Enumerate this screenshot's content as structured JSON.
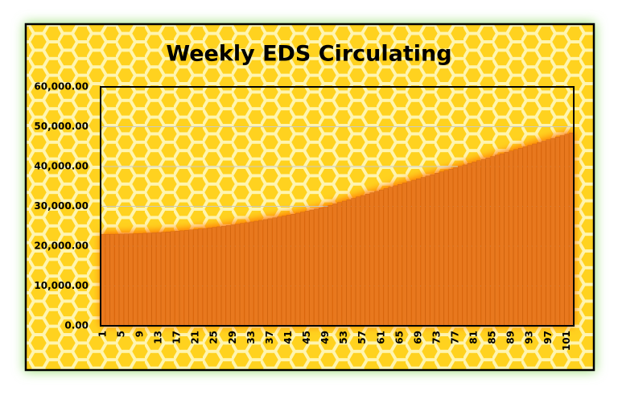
{
  "chart_data": {
    "type": "bar",
    "title": "Weekly EDS Circulating",
    "categories": [
      1,
      null,
      null,
      null,
      5,
      null,
      null,
      null,
      9,
      null,
      null,
      null,
      13,
      null,
      null,
      null,
      17,
      null,
      null,
      null,
      21,
      null,
      null,
      null,
      25,
      null,
      null,
      null,
      29,
      null,
      null,
      null,
      33,
      null,
      null,
      null,
      37,
      null,
      null,
      null,
      41,
      null,
      null,
      null,
      45,
      null,
      null,
      null,
      49,
      null,
      null,
      null,
      53,
      null,
      null,
      null,
      57,
      null,
      null,
      null,
      61,
      null,
      null,
      null,
      65,
      null,
      null,
      null,
      69,
      null,
      null,
      null,
      73,
      null,
      null,
      null,
      77,
      null,
      null,
      null,
      81,
      null,
      null,
      null,
      85,
      null,
      null,
      null,
      89,
      null,
      null,
      null,
      93,
      null,
      null,
      null,
      97,
      null,
      null,
      null,
      101,
      null
    ],
    "values": [
      23000,
      23003,
      23012,
      23027,
      23048,
      23075,
      23108,
      23147,
      23192,
      23243,
      23300,
      23363,
      23432,
      23507,
      23588,
      23675,
      23768,
      23867,
      23972,
      24083,
      24200,
      24323,
      24452,
      24587,
      24728,
      24875,
      25028,
      25187,
      25352,
      25523,
      25700,
      25883,
      26072,
      26267,
      26468,
      26675,
      26888,
      27107,
      27332,
      27563,
      27800,
      28043,
      28292,
      28547,
      28808,
      29075,
      29348,
      29627,
      29912,
      30262,
      30612,
      30962,
      31312,
      31662,
      32012,
      32362,
      32712,
      33062,
      33412,
      33762,
      34112,
      34462,
      34812,
      35162,
      35512,
      35862,
      36212,
      36562,
      36912,
      37262,
      37612,
      37962,
      38312,
      38662,
      39012,
      39362,
      39712,
      40062,
      40412,
      40762,
      41112,
      41462,
      41812,
      42162,
      42512,
      42862,
      43212,
      43562,
      43912,
      44262,
      44612,
      44962,
      45312,
      45662,
      46012,
      46362,
      46712,
      47062,
      47412,
      47762,
      48112,
      48462
    ],
    "color": "#e8781e",
    "ylim": [
      0,
      60000
    ],
    "yticks": [
      {
        "value": 0,
        "label": "0.00"
      },
      {
        "value": 10000,
        "label": "10,000.00"
      },
      {
        "value": 20000,
        "label": "20,000.00"
      },
      {
        "value": 30000,
        "label": "30,000.00"
      },
      {
        "value": 40000,
        "label": "40,000.00"
      },
      {
        "value": 50000,
        "label": "50,000.00"
      },
      {
        "value": 60000,
        "label": "60,000.00"
      }
    ],
    "grid": true
  }
}
